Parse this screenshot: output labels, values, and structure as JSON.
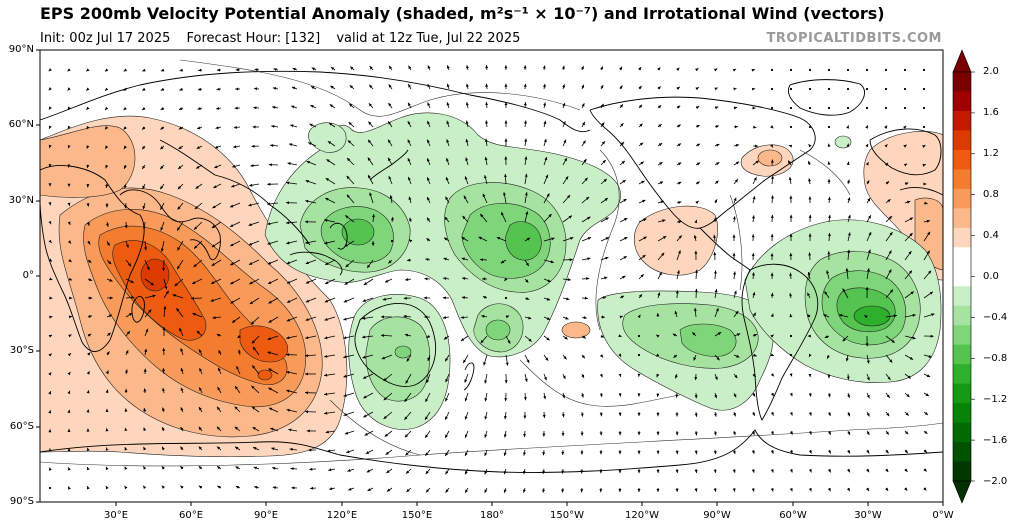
{
  "header": {
    "title": "EPS 200mb Velocity Potential Anomaly (shaded, m²s⁻¹ × 10⁻⁷) and Irrotational Wind (vectors)",
    "init": "Init: 00z Jul 17 2025",
    "forecast_hour": "Forecast Hour: [132]",
    "valid": "valid at 12z Tue, Jul 22 2025",
    "credit": "TROPICALTIDBITS.COM"
  },
  "map": {
    "lat_labels": [
      "90°N",
      "60°N",
      "30°N",
      "0°",
      "30°S",
      "60°S",
      "90°S"
    ],
    "lon_labels": [
      "30°E",
      "60°E",
      "90°E",
      "120°E",
      "150°E",
      "180°",
      "150°W",
      "120°W",
      "90°W",
      "60°W",
      "30°W",
      "0°W"
    ],
    "anomaly_centers": [
      {
        "sign": "positive",
        "region": "Africa / Indian Ocean",
        "peak": 1.2
      },
      {
        "sign": "positive",
        "region": "Eastern Pacific off Mexico",
        "peak": 0.4
      },
      {
        "sign": "positive",
        "region": "Northwest Atlantic",
        "peak": 0.8
      },
      {
        "sign": "negative",
        "region": "West Pacific / Philippines",
        "peak": -0.8
      },
      {
        "sign": "negative",
        "region": "Central North Pacific",
        "peak": -0.8
      },
      {
        "sign": "negative",
        "region": "Australia",
        "peak": -0.6
      },
      {
        "sign": "negative",
        "region": "South Pacific",
        "peak": -0.6
      },
      {
        "sign": "negative",
        "region": "South Atlantic",
        "peak": -1.2
      }
    ]
  },
  "colorbar": {
    "labels": [
      "2.0",
      "1.6",
      "1.2",
      "0.8",
      "0.4",
      "0.0",
      "−0.4",
      "−0.8",
      "−1.2",
      "−1.6",
      "−2.0"
    ],
    "colors": [
      "#7a0000",
      "#a00000",
      "#c41a00",
      "#dd3a00",
      "#ec5b10",
      "#f47c2e",
      "#f89a5a",
      "#fbb88b",
      "#fdd6bd",
      "#ffffff",
      "#ffffff",
      "#c9efc6",
      "#a6e3a1",
      "#7fd57a",
      "#55c350",
      "#2fb02c",
      "#169a16",
      "#078307",
      "#036b03",
      "#005200",
      "#003800"
    ]
  }
}
